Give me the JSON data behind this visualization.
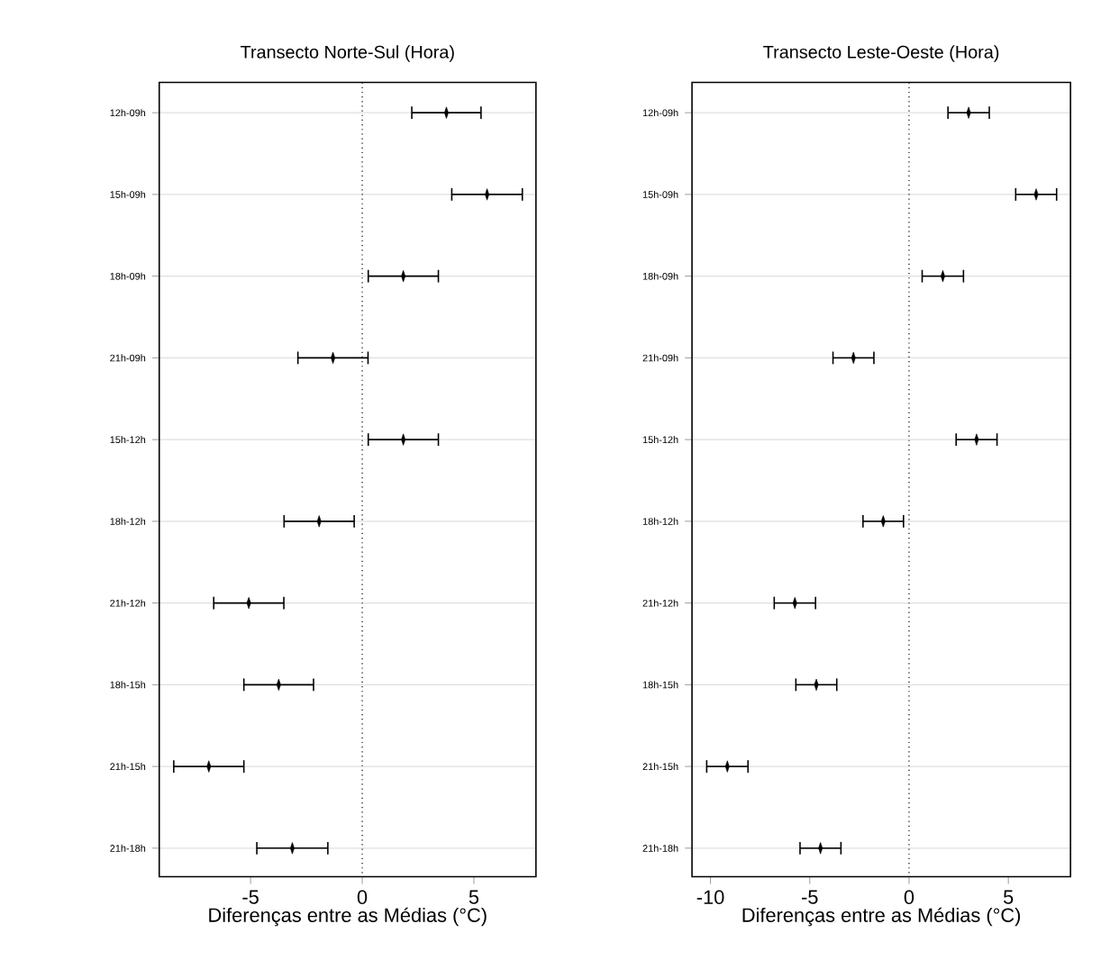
{
  "chart_data": [
    {
      "type": "scatter",
      "orientation": "horizontal",
      "title": "Transecto Norte-Sul (Hora)",
      "xlabel": "Diferenças entre as Médias (°C)",
      "categories": [
        "12h-09h",
        "15h-09h",
        "18h-09h",
        "21h-09h",
        "15h-12h",
        "18h-12h",
        "21h-12h",
        "18h-15h",
        "21h-15h",
        "21h-18h"
      ],
      "values": [
        3.77,
        5.59,
        1.84,
        -1.31,
        1.84,
        -1.93,
        -5.08,
        -3.74,
        -6.87,
        -3.13
      ],
      "errors": [
        1.55,
        1.58,
        1.57,
        1.57,
        1.57,
        1.57,
        1.57,
        1.56,
        1.57,
        1.59
      ],
      "color": "#000000",
      "xlim": [
        -9.09,
        7.78
      ],
      "xticks": [
        -5,
        0,
        5
      ],
      "grid": "y",
      "ref_lines": [
        {
          "axis": "x",
          "value": 0,
          "line_style": "dotted",
          "color": "#000000"
        }
      ]
    },
    {
      "type": "scatter",
      "orientation": "horizontal",
      "title": "Transecto Leste-Oeste (Hora)",
      "xlabel": "Diferenças entre as Médias (°C)",
      "categories": [
        "12h-09h",
        "15h-09h",
        "18h-09h",
        "21h-09h",
        "15h-12h",
        "18h-12h",
        "21h-12h",
        "18h-15h",
        "21h-15h",
        "21h-18h"
      ],
      "values": [
        3.0,
        6.4,
        1.7,
        -2.8,
        3.4,
        -1.3,
        -5.75,
        -4.67,
        -9.15,
        -4.46
      ],
      "errors": [
        1.04,
        1.03,
        1.04,
        1.03,
        1.03,
        1.02,
        1.04,
        1.03,
        1.04,
        1.03
      ],
      "color": "#000000",
      "xlim": [
        -10.93,
        8.13
      ],
      "xticks": [
        -10,
        -5,
        0,
        5
      ],
      "grid": "y",
      "ref_lines": [
        {
          "axis": "x",
          "value": 0,
          "line_style": "dotted",
          "color": "#000000"
        }
      ]
    }
  ]
}
